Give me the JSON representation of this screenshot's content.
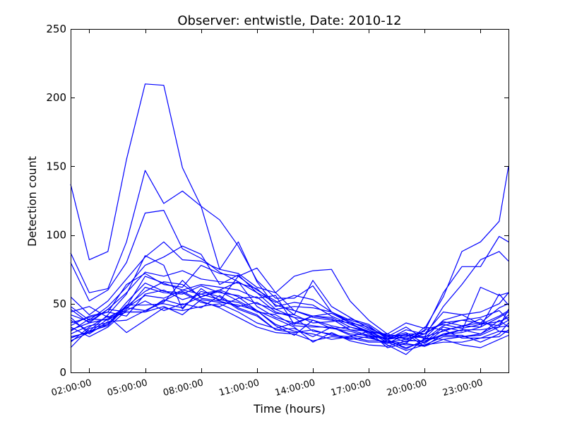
{
  "chart_data": {
    "type": "line",
    "title": "Observer: entwistle, Date: 2010-12",
    "xlabel": "Time (hours)",
    "ylabel": "Detection count",
    "xlim": [
      1,
      24.5
    ],
    "ylim": [
      0,
      250
    ],
    "xticks": [
      2,
      5,
      8,
      11,
      14,
      17,
      20,
      23
    ],
    "xtick_labels": [
      "02:00:00",
      "05:00:00",
      "08:00:00",
      "11:00:00",
      "14:00:00",
      "17:00:00",
      "20:00:00",
      "23:00:00"
    ],
    "yticks": [
      0,
      50,
      100,
      150,
      200,
      250
    ],
    "ytick_labels": [
      "0",
      "50",
      "100",
      "150",
      "200",
      "250"
    ],
    "grid": false,
    "line_color": "#0000ff",
    "x": [
      1,
      2,
      3,
      4,
      5,
      6,
      7,
      8,
      9,
      10,
      11,
      12,
      13,
      14,
      15,
      16,
      17,
      18,
      19,
      20,
      21,
      22,
      23,
      24,
      24.5
    ],
    "series": [
      {
        "values": [
          137,
          82,
          88,
          155,
          210,
          209,
          149,
          121,
          75,
          72,
          62,
          58,
          70,
          74,
          75,
          52,
          38,
          28,
          36,
          32,
          55,
          88,
          95,
          110,
          150
        ]
      },
      {
        "values": [
          87,
          58,
          61,
          95,
          147,
          123,
          132,
          121,
          111,
          92,
          67,
          54,
          54,
          63,
          44,
          38,
          34,
          24,
          26,
          30,
          58,
          77,
          77,
          99,
          95
        ]
      },
      {
        "values": [
          80,
          52,
          60,
          80,
          116,
          118,
          90,
          83,
          73,
          66,
          58,
          51,
          56,
          53,
          44,
          37,
          31,
          26,
          27,
          26,
          48,
          64,
          82,
          88,
          81
        ]
      },
      {
        "values": [
          55,
          42,
          52,
          68,
          84,
          95,
          82,
          81,
          75,
          95,
          66,
          48,
          51,
          49,
          41,
          35,
          30,
          24,
          28,
          28,
          44,
          42,
          44,
          50,
          58
        ]
      },
      {
        "values": [
          48,
          38,
          48,
          62,
          78,
          84,
          92,
          86,
          64,
          71,
          58,
          46,
          48,
          47,
          44,
          36,
          28,
          24,
          31,
          28,
          36,
          38,
          36,
          47,
          50
        ]
      },
      {
        "values": [
          42,
          37,
          46,
          58,
          73,
          70,
          74,
          68,
          66,
          65,
          61,
          49,
          45,
          41,
          40,
          33,
          30,
          27,
          27,
          25,
          38,
          42,
          35,
          41,
          45
        ]
      },
      {
        "values": [
          38,
          30,
          42,
          57,
          85,
          78,
          46,
          61,
          52,
          70,
          76,
          58,
          45,
          40,
          38,
          36,
          29,
          22,
          24,
          28,
          37,
          34,
          33,
          40,
          44
        ]
      },
      {
        "values": [
          34,
          41,
          44,
          64,
          72,
          64,
          62,
          78,
          72,
          70,
          60,
          52,
          42,
          67,
          48,
          40,
          32,
          27,
          22,
          31,
          35,
          32,
          35,
          37,
          40
        ]
      },
      {
        "values": [
          31,
          36,
          39,
          48,
          70,
          65,
          60,
          64,
          62,
          60,
          54,
          56,
          35,
          41,
          43,
          36,
          33,
          25,
          25,
          26,
          30,
          34,
          36,
          34,
          38
        ]
      },
      {
        "values": [
          28,
          34,
          36,
          46,
          62,
          58,
          57,
          63,
          58,
          56,
          50,
          46,
          40,
          38,
          34,
          31,
          30,
          23,
          18,
          22,
          28,
          31,
          28,
          35,
          42
        ]
      },
      {
        "values": [
          36,
          40,
          44,
          41,
          57,
          60,
          53,
          57,
          60,
          66,
          48,
          40,
          36,
          34,
          32,
          33,
          29,
          28,
          24,
          22,
          33,
          30,
          62,
          56,
          58
        ]
      },
      {
        "values": [
          25,
          30,
          34,
          48,
          59,
          66,
          64,
          55,
          59,
          52,
          45,
          34,
          27,
          38,
          32,
          30,
          26,
          21,
          28,
          19,
          28,
          29,
          33,
          57,
          49
        ]
      },
      {
        "values": [
          44,
          48,
          40,
          47,
          56,
          54,
          60,
          57,
          53,
          51,
          44,
          42,
          34,
          33,
          33,
          27,
          25,
          22,
          20,
          20,
          26,
          26,
          27,
          33,
          46
        ]
      },
      {
        "values": [
          22,
          33,
          41,
          29,
          38,
          47,
          45,
          48,
          50,
          44,
          36,
          32,
          36,
          41,
          39,
          31,
          27,
          24,
          17,
          24,
          34,
          38,
          40,
          45,
          38
        ]
      },
      {
        "values": [
          18,
          32,
          35,
          49,
          49,
          50,
          47,
          59,
          55,
          46,
          41,
          31,
          32,
          26,
          33,
          28,
          27,
          20,
          13,
          25,
          24,
          26,
          28,
          38,
          33
        ]
      },
      {
        "values": [
          40,
          28,
          37,
          38,
          45,
          52,
          59,
          52,
          47,
          40,
          33,
          29,
          28,
          23,
          26,
          25,
          22,
          22,
          16,
          20,
          22,
          22,
          25,
          30,
          29
        ]
      },
      {
        "values": [
          46,
          36,
          46,
          44,
          44,
          53,
          49,
          55,
          60,
          55,
          45,
          35,
          30,
          28,
          24,
          26,
          30,
          18,
          21,
          19,
          24,
          20,
          18,
          24,
          27
        ]
      },
      {
        "values": [
          26,
          29,
          39,
          44,
          44,
          48,
          42,
          53,
          51,
          49,
          45,
          39,
          33,
          22,
          29,
          23,
          20,
          19,
          23,
          23,
          27,
          31,
          31,
          33,
          34
        ]
      },
      {
        "values": [
          33,
          26,
          33,
          45,
          52,
          45,
          50,
          47,
          56,
          47,
          42,
          31,
          29,
          31,
          27,
          26,
          23,
          23,
          21,
          33,
          31,
          33,
          39,
          30,
          30
        ]
      },
      {
        "values": [
          23,
          29,
          35,
          51,
          65,
          59,
          58,
          51,
          48,
          54,
          55,
          44,
          40,
          30,
          28,
          24,
          26,
          25,
          29,
          21,
          31,
          25,
          25,
          26,
          31
        ]
      },
      {
        "values": [
          30,
          39,
          38,
          47,
          45,
          51,
          67,
          54,
          52,
          48,
          51,
          43,
          42,
          36,
          37,
          39,
          35,
          26,
          33,
          24,
          27,
          27,
          22,
          28,
          36
        ]
      }
    ]
  }
}
